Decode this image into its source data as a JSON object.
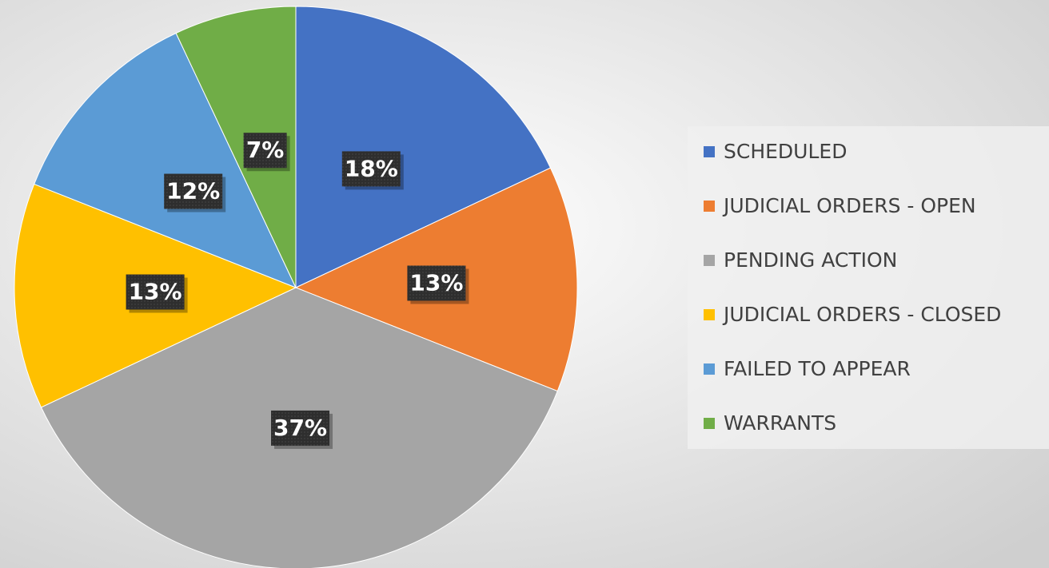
{
  "chart_data": {
    "type": "pie",
    "categories": [
      "SCHEDULED",
      "JUDICIAL ORDERS - OPEN",
      "PENDING ACTION",
      "JUDICIAL ORDERS - CLOSED",
      "FAILED TO APPEAR",
      "WARRANTS"
    ],
    "values": [
      18,
      13,
      37,
      13,
      12,
      7
    ],
    "value_labels": [
      "18%",
      "13%",
      "37%",
      "13%",
      "12%",
      "7%"
    ],
    "colors": [
      "#4472c4",
      "#ed7d31",
      "#a5a5a5",
      "#ffc000",
      "#5b9bd5",
      "#70ad47"
    ],
    "legend": "right"
  }
}
